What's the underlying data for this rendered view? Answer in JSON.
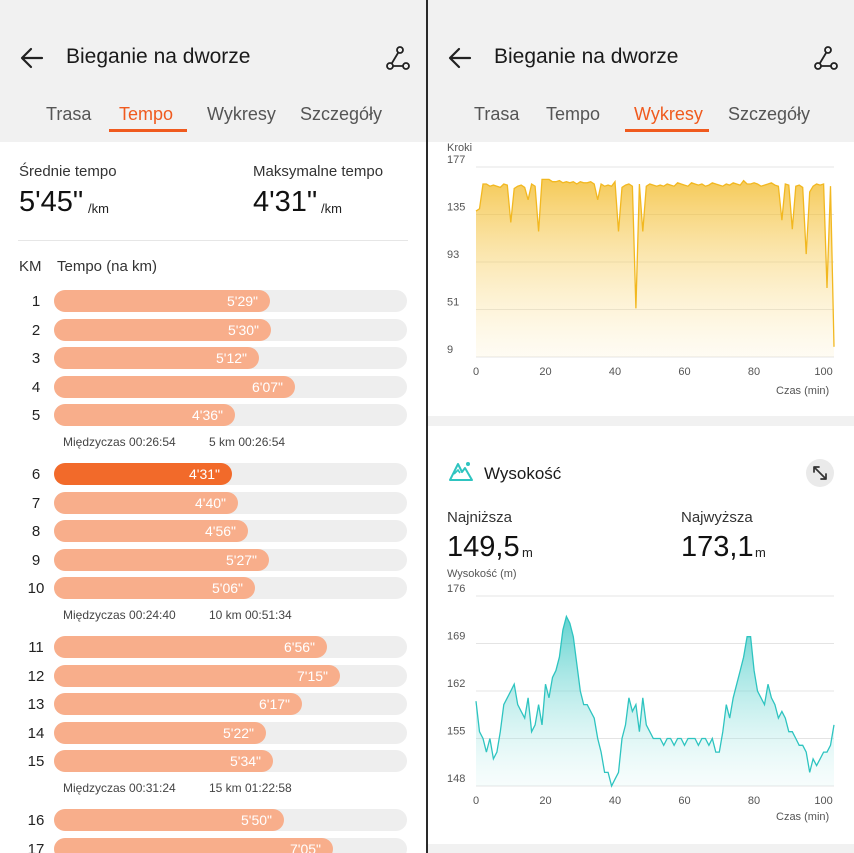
{
  "left": {
    "header": {
      "title": "Bieganie na dworze"
    },
    "tabs": [
      "Trasa",
      "Tempo",
      "Wykresy",
      "Szczegóły"
    ],
    "avg": {
      "label": "Średnie tempo",
      "value": "5'45\"",
      "unit": "/km"
    },
    "max": {
      "label": "Maksymalne tempo",
      "value": "4'31\"",
      "unit": "/km"
    },
    "columns": {
      "km": "KM",
      "pace": "Tempo (na km)"
    },
    "laps": [
      {
        "km": "1",
        "pace": "5'29\"",
        "seconds": 329
      },
      {
        "km": "2",
        "pace": "5'30\"",
        "seconds": 330
      },
      {
        "km": "3",
        "pace": "5'12\"",
        "seconds": 312
      },
      {
        "km": "4",
        "pace": "6'07\"",
        "seconds": 367
      },
      {
        "km": "5",
        "pace": "4'36\"",
        "seconds": 276
      },
      {
        "km": "6",
        "pace": "4'31\"",
        "seconds": 271,
        "best": true
      },
      {
        "km": "7",
        "pace": "4'40\"",
        "seconds": 280
      },
      {
        "km": "8",
        "pace": "4'56\"",
        "seconds": 296
      },
      {
        "km": "9",
        "pace": "5'27\"",
        "seconds": 327
      },
      {
        "km": "10",
        "pace": "5'06\"",
        "seconds": 306
      },
      {
        "km": "11",
        "pace": "6'56\"",
        "seconds": 416
      },
      {
        "km": "12",
        "pace": "7'15\"",
        "seconds": 435
      },
      {
        "km": "13",
        "pace": "6'17\"",
        "seconds": 377
      },
      {
        "km": "14",
        "pace": "5'22\"",
        "seconds": 322
      },
      {
        "km": "15",
        "pace": "5'34\"",
        "seconds": 334
      },
      {
        "km": "16",
        "pace": "5'50\"",
        "seconds": 350
      },
      {
        "km": "17",
        "pace": "7'05\"",
        "seconds": 425
      }
    ],
    "splits": [
      {
        "split": "Międzyczas 00:26:54",
        "total": "5 km 00:26:54"
      },
      {
        "split": "Międzyczas 00:24:40",
        "total": "10 km 00:51:34"
      },
      {
        "split": "Międzyczas 00:31:24",
        "total": "15 km 01:22:58"
      }
    ]
  },
  "right": {
    "header": {
      "title": "Bieganie na dworze"
    },
    "tabs": [
      "Trasa",
      "Tempo",
      "Wykresy",
      "Szczegóły"
    ],
    "cadence": {
      "ylabel": "Kroki",
      "yticks": [
        "177",
        "135",
        "93",
        "51",
        "9"
      ],
      "xticks": [
        "0",
        "20",
        "40",
        "60",
        "80",
        "100"
      ],
      "xlabel": "Czas (min)"
    },
    "elevation": {
      "title": "Wysokość",
      "min_label": "Najniższa",
      "min_value": "149,5",
      "min_unit": "m",
      "max_label": "Najwyższa",
      "max_value": "173,1",
      "max_unit": "m",
      "ylabel": "Wysokość (m)",
      "yticks": [
        "176",
        "169",
        "162",
        "155",
        "148"
      ],
      "xticks": [
        "0",
        "20",
        "40",
        "60",
        "80",
        "100"
      ],
      "xlabel": "Czas (min)"
    }
  },
  "colors": {
    "accent": "#f05a1e",
    "bar": "#f8ae8b",
    "best_bar": "#f26a2a",
    "cadence": "#f2b820",
    "elevation": "#2ec4c0"
  },
  "chart_data": [
    {
      "type": "area",
      "ylabel": "Kroki",
      "xlabel": "Czas (min)",
      "xlim": [
        0,
        103
      ],
      "ylim": [
        9,
        177
      ],
      "x": [
        0,
        1,
        2,
        3,
        4,
        5,
        6,
        7,
        8,
        9,
        10,
        11,
        12,
        13,
        14,
        15,
        16,
        17,
        18,
        19,
        20,
        21,
        22,
        23,
        24,
        25,
        26,
        27,
        28,
        29,
        30,
        31,
        32,
        33,
        34,
        35,
        36,
        37,
        38,
        39,
        40,
        41,
        42,
        43,
        44,
        45,
        46,
        47,
        48,
        49,
        50,
        51,
        52,
        53,
        54,
        55,
        56,
        57,
        58,
        59,
        60,
        61,
        62,
        63,
        64,
        65,
        66,
        67,
        68,
        69,
        70,
        71,
        72,
        73,
        74,
        75,
        76,
        77,
        78,
        79,
        80,
        81,
        82,
        83,
        84,
        85,
        86,
        87,
        88,
        89,
        90,
        91,
        92,
        93,
        94,
        95,
        96,
        97,
        98,
        99,
        100,
        101,
        102,
        103
      ],
      "y": [
        138,
        140,
        162,
        162,
        160,
        161,
        160,
        159,
        162,
        161,
        128,
        158,
        160,
        161,
        159,
        148,
        162,
        160,
        120,
        166,
        166,
        166,
        164,
        164,
        165,
        163,
        164,
        163,
        164,
        162,
        164,
        163,
        163,
        164,
        162,
        148,
        162,
        160,
        161,
        160,
        164,
        120,
        159,
        161,
        162,
        160,
        52,
        162,
        120,
        160,
        162,
        161,
        160,
        161,
        160,
        162,
        161,
        160,
        163,
        162,
        161,
        160,
        163,
        162,
        161,
        162,
        160,
        161,
        163,
        162,
        161,
        160,
        162,
        161,
        163,
        162,
        161,
        165,
        162,
        162,
        163,
        162,
        160,
        161,
        162,
        163,
        161,
        160,
        130,
        162,
        161,
        122,
        160,
        161,
        159,
        100,
        155,
        160,
        162,
        161,
        162,
        70,
        160,
        18
      ]
    },
    {
      "type": "area",
      "ylabel": "Wysokość (m)",
      "xlabel": "Czas (min)",
      "xlim": [
        0,
        103
      ],
      "ylim": [
        148,
        176
      ],
      "x": [
        0,
        1,
        2,
        3,
        4,
        5,
        6,
        7,
        8,
        9,
        10,
        11,
        12,
        13,
        14,
        15,
        16,
        17,
        18,
        19,
        20,
        21,
        22,
        23,
        24,
        25,
        26,
        27,
        28,
        29,
        30,
        31,
        32,
        33,
        34,
        35,
        36,
        37,
        38,
        39,
        40,
        41,
        42,
        43,
        44,
        45,
        46,
        47,
        48,
        49,
        50,
        51,
        52,
        53,
        54,
        55,
        56,
        57,
        58,
        59,
        60,
        61,
        62,
        63,
        64,
        65,
        66,
        67,
        68,
        69,
        70,
        71,
        72,
        73,
        74,
        75,
        76,
        77,
        78,
        79,
        80,
        81,
        82,
        83,
        84,
        85,
        86,
        87,
        88,
        89,
        90,
        91,
        92,
        93,
        94,
        95,
        96,
        97,
        98,
        99,
        100,
        101,
        102,
        103
      ],
      "y": [
        160.5,
        156,
        155,
        153,
        155,
        152,
        153,
        156,
        160,
        161,
        162,
        163,
        160,
        159,
        158,
        161,
        156,
        157,
        160,
        157,
        163,
        161,
        164,
        165,
        167,
        171,
        173,
        172,
        170,
        166,
        162,
        160,
        160,
        159,
        158,
        155,
        153,
        150,
        150,
        148,
        149,
        150,
        155,
        157,
        161,
        159,
        160,
        156,
        161,
        157,
        156,
        155,
        155,
        155,
        154,
        155,
        155,
        154,
        155,
        155,
        154,
        155,
        155,
        155,
        154,
        155,
        155,
        154,
        155,
        153,
        153,
        156,
        160,
        158,
        161,
        163,
        165,
        167,
        170,
        170,
        165,
        162,
        161,
        160,
        163,
        161,
        160,
        158,
        159,
        158,
        156,
        156,
        155,
        154,
        154,
        153,
        150,
        152,
        151,
        152,
        153,
        153,
        154,
        157
      ]
    }
  ]
}
